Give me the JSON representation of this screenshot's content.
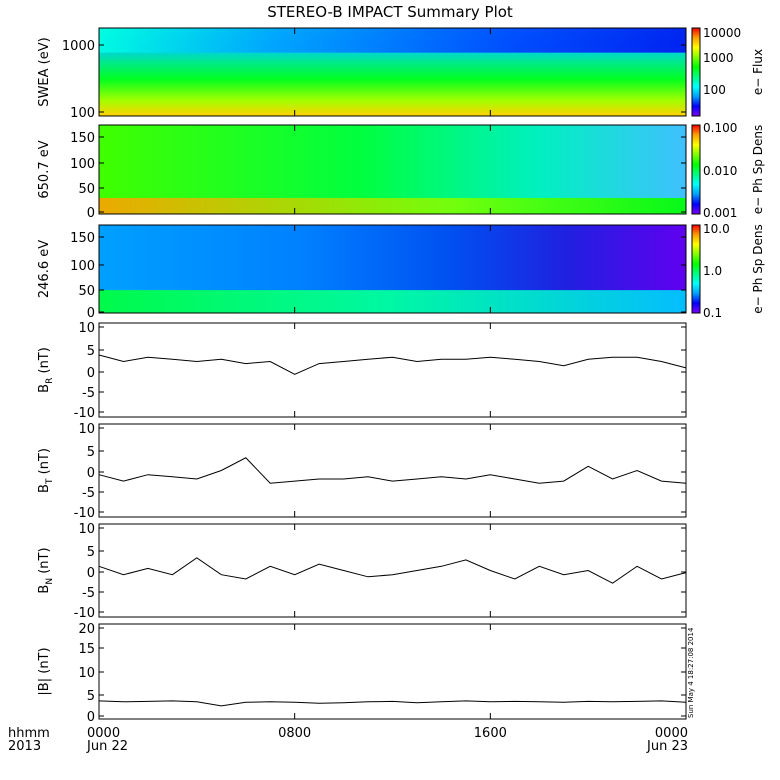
{
  "title": "STEREO-B IMPACT Summary Plot",
  "x_axis": {
    "label_top": "hhmm",
    "label_bottom": "2013",
    "ticks": [
      {
        "t": 0,
        "top": "0000",
        "bottom": "Jun 22"
      },
      {
        "t": 8,
        "top": "0800",
        "bottom": ""
      },
      {
        "t": 16,
        "top": "1600",
        "bottom": ""
      },
      {
        "t": 24,
        "top": "0000",
        "bottom": "Jun 23"
      }
    ]
  },
  "timestamp": "Sun May  4 18:27:08 2014",
  "colors": {
    "spectrogram_scale": [
      "#7d00ff",
      "#0000ff",
      "#00a0ff",
      "#00ffff",
      "#00ff80",
      "#00ff00",
      "#80ff00",
      "#ffff00",
      "#ffa000",
      "#ff0000"
    ]
  },
  "chart_data": [
    {
      "type": "heatmap",
      "ylabel": "SWEA (eV)",
      "yscale": "log",
      "ylim": [
        95,
        2000
      ],
      "yticks": [
        "1000",
        "100"
      ],
      "colorbar": {
        "label": "e− Flux",
        "scale": "log",
        "range": [
          10,
          10000
        ],
        "ticks": [
          "10000",
          "1000",
          "100"
        ]
      }
    },
    {
      "type": "heatmap",
      "ylabel": "650.7 eV",
      "ylim": [
        -10,
        180
      ],
      "yticks": [
        "150",
        "100",
        "50",
        "0"
      ],
      "colorbar": {
        "label": "e− Ph Sp Dens",
        "scale": "log",
        "range": [
          0.001,
          0.1
        ],
        "ticks": [
          "0.100",
          "0.010",
          "0.001"
        ]
      }
    },
    {
      "type": "heatmap",
      "ylabel": "246.6 eV",
      "ylim": [
        -10,
        180
      ],
      "yticks": [
        "150",
        "100",
        "50",
        "0"
      ],
      "colorbar": {
        "label": "e− Ph Sp Dens",
        "scale": "log",
        "range": [
          0.1,
          10
        ],
        "ticks": [
          "10.0",
          "1.0",
          "0.1"
        ]
      }
    },
    {
      "type": "line",
      "ylabel": "B",
      "ylabel_sub": "R",
      "ylabel_unit": "(nT)",
      "ylim": [
        -11,
        11
      ],
      "yticks": [
        "10",
        "5",
        "0",
        "-5",
        "-10"
      ],
      "x": [
        0,
        1,
        2,
        3,
        4,
        5,
        6,
        7,
        8,
        9,
        10,
        11,
        12,
        13,
        14,
        15,
        16,
        17,
        18,
        19,
        20,
        21,
        22,
        23,
        24
      ],
      "y": [
        3.5,
        2,
        3,
        2.5,
        2,
        2.5,
        1.5,
        2,
        -1,
        1.5,
        2,
        2.5,
        3,
        2,
        2.5,
        2.5,
        3,
        2.5,
        2,
        1,
        2.5,
        3,
        3,
        2,
        0.5
      ]
    },
    {
      "type": "line",
      "ylabel": "B",
      "ylabel_sub": "T",
      "ylabel_unit": "(nT)",
      "ylim": [
        -11,
        11
      ],
      "yticks": [
        "10",
        "5",
        "0",
        "-5",
        "-10"
      ],
      "x": [
        0,
        1,
        2,
        3,
        4,
        5,
        6,
        7,
        8,
        9,
        10,
        11,
        12,
        13,
        14,
        15,
        16,
        17,
        18,
        19,
        20,
        21,
        22,
        23,
        24
      ],
      "y": [
        -1,
        -2.5,
        -1,
        -1.5,
        -2,
        0,
        3,
        -3,
        -2.5,
        -2,
        -2,
        -1.5,
        -2.5,
        -2,
        -1.5,
        -2,
        -1,
        -2,
        -3,
        -2.5,
        1,
        -2,
        0,
        -2.5,
        -3
      ]
    },
    {
      "type": "line",
      "ylabel": "B",
      "ylabel_sub": "N",
      "ylabel_unit": "(nT)",
      "ylim": [
        -11,
        11
      ],
      "yticks": [
        "10",
        "5",
        "0",
        "-5",
        "-10"
      ],
      "x": [
        0,
        1,
        2,
        3,
        4,
        5,
        6,
        7,
        8,
        9,
        10,
        11,
        12,
        13,
        14,
        15,
        16,
        17,
        18,
        19,
        20,
        21,
        22,
        23,
        24
      ],
      "y": [
        1,
        -1,
        0.5,
        -1,
        3,
        -1,
        -2,
        1,
        -1,
        1.5,
        0,
        -1.5,
        -1,
        0,
        1,
        2.5,
        0,
        -2,
        1,
        -1,
        0,
        -3,
        1,
        -2,
        -0.5
      ]
    },
    {
      "type": "line",
      "ylabel": "|B|",
      "ylabel_unit": "(nT)",
      "ylim": [
        -0.5,
        20.5
      ],
      "yticks": [
        "20",
        "15",
        "10",
        "5",
        "0"
      ],
      "x": [
        0,
        1,
        2,
        3,
        4,
        5,
        6,
        7,
        8,
        9,
        10,
        11,
        12,
        13,
        14,
        15,
        16,
        17,
        18,
        19,
        20,
        21,
        22,
        23,
        24
      ],
      "y": [
        3.5,
        3.3,
        3.4,
        3.5,
        3.3,
        2.4,
        3.2,
        3.3,
        3.2,
        3.0,
        3.1,
        3.3,
        3.4,
        3.1,
        3.3,
        3.5,
        3.3,
        3.4,
        3.3,
        3.2,
        3.4,
        3.3,
        3.4,
        3.5,
        3.2
      ]
    }
  ]
}
